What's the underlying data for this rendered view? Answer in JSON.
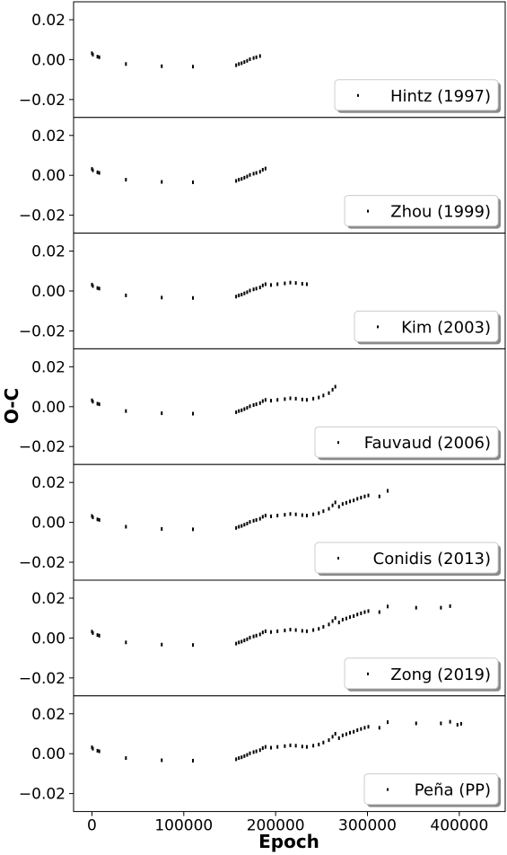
{
  "chart_data": {
    "type": "scatter",
    "xlabel": "Epoch",
    "ylabel": "O-C",
    "xlim": [
      -20000,
      450000
    ],
    "ylim": [
      -0.029,
      0.029
    ],
    "x_ticks": [
      0,
      100000,
      200000,
      300000,
      400000
    ],
    "x_tick_labels": [
      "0",
      "100000",
      "200000",
      "300000",
      "400000"
    ],
    "y_ticks": [
      -0.02,
      0.0,
      0.02
    ],
    "y_tick_labels": [
      "−0.02",
      "0.00",
      "0.02"
    ],
    "legend_placement": "lower right",
    "marker_color": "#000000",
    "panels": [
      {
        "name": "Hintz (1997)",
        "max_epoch": 185000
      },
      {
        "name": "Zhou (1999)",
        "max_epoch": 190000
      },
      {
        "name": "Kim (2003)",
        "max_epoch": 235000
      },
      {
        "name": "Fauvaud (2006)",
        "max_epoch": 265000
      },
      {
        "name": "Conidis (2013)",
        "max_epoch": 322000
      },
      {
        "name": "Zong (2019)",
        "max_epoch": 390000
      },
      {
        "name": "Peña (PP)",
        "max_epoch": 402000
      }
    ],
    "points": [
      [
        0,
        0.0032
      ],
      [
        1000,
        0.0025
      ],
      [
        6000,
        0.0015
      ],
      [
        8000,
        0.0012
      ],
      [
        37000,
        -0.0022
      ],
      [
        76000,
        -0.0033
      ],
      [
        110000,
        -0.0035
      ],
      [
        157000,
        -0.0028
      ],
      [
        160000,
        -0.0022
      ],
      [
        163000,
        -0.0018
      ],
      [
        166000,
        -0.0012
      ],
      [
        169000,
        -0.0006
      ],
      [
        172000,
        0.0002
      ],
      [
        176000,
        0.0008
      ],
      [
        179000,
        0.0012
      ],
      [
        183000,
        0.0018
      ],
      [
        186000,
        0.0028
      ],
      [
        189000,
        0.0034
      ],
      [
        195000,
        0.003
      ],
      [
        202000,
        0.0034
      ],
      [
        210000,
        0.0038
      ],
      [
        216000,
        0.0042
      ],
      [
        222000,
        0.004
      ],
      [
        229000,
        0.0036
      ],
      [
        234000,
        0.0034
      ],
      [
        241000,
        0.004
      ],
      [
        247000,
        0.0046
      ],
      [
        252000,
        0.0056
      ],
      [
        258000,
        0.0068
      ],
      [
        262000,
        0.0085
      ],
      [
        265000,
        0.01
      ],
      [
        269000,
        0.0078
      ],
      [
        273000,
        0.0092
      ],
      [
        277000,
        0.0098
      ],
      [
        281000,
        0.0105
      ],
      [
        285000,
        0.011
      ],
      [
        289000,
        0.0118
      ],
      [
        293000,
        0.0124
      ],
      [
        297000,
        0.013
      ],
      [
        301000,
        0.0135
      ],
      [
        313000,
        0.013
      ],
      [
        322000,
        0.0158
      ],
      [
        353000,
        0.0152
      ],
      [
        380000,
        0.0152
      ],
      [
        390000,
        0.016
      ],
      [
        398000,
        0.0145
      ],
      [
        402000,
        0.015
      ]
    ]
  }
}
